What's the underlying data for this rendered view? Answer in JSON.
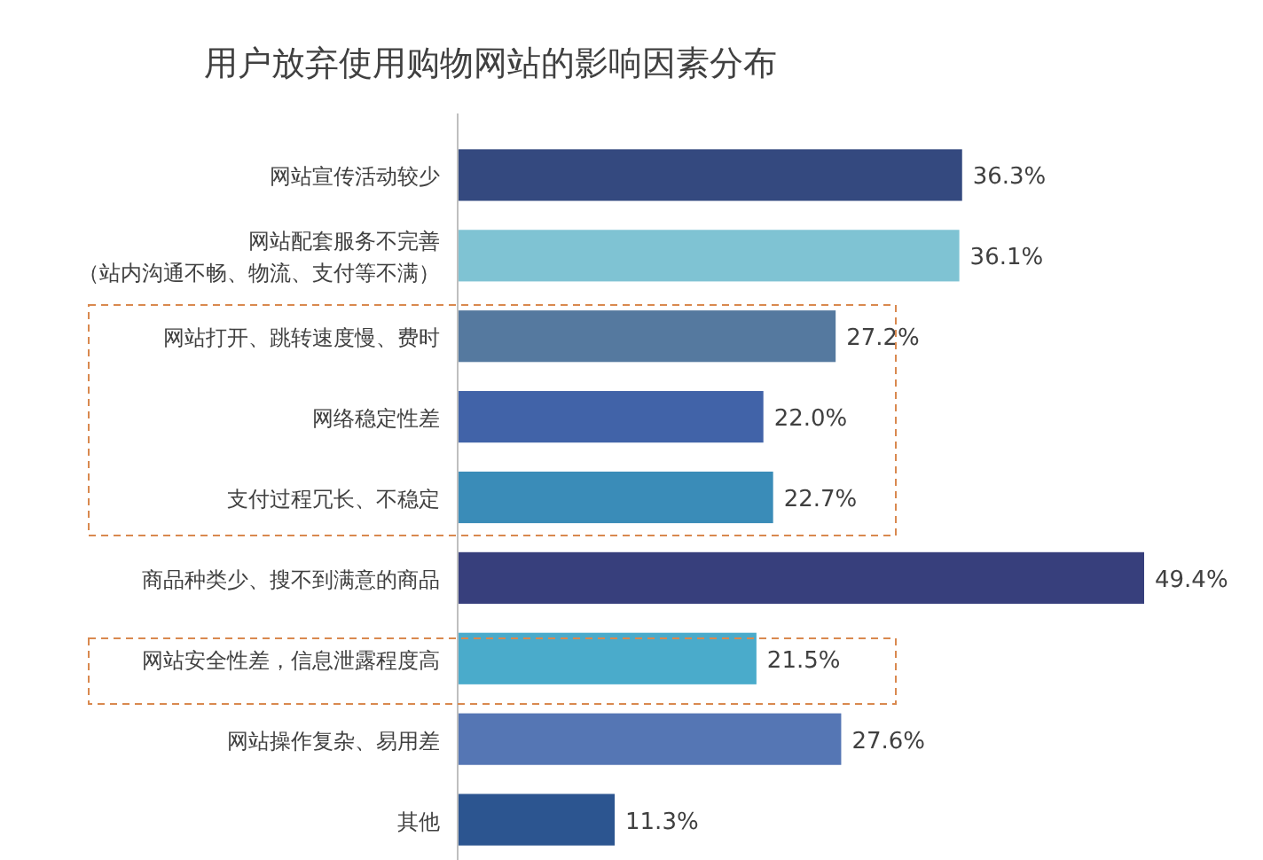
{
  "chart_data": {
    "type": "bar",
    "orientation": "horizontal",
    "title": "用户放弃使用购物网站的影响因素分布",
    "categories": [
      "网站宣传活动较少",
      "网站配套服务不完善（站内沟通不畅、物流、支付等不满）",
      "网站打开、跳转速度慢、费时",
      "网络稳定性差",
      "支付过程冗长、不稳定",
      "商品种类少、搜不到满意的商品",
      "网站安全性差，信息泄露程度高",
      "网站操作复杂、易用差",
      "其他"
    ],
    "values": [
      36.3,
      36.1,
      27.2,
      22.0,
      22.7,
      49.4,
      21.5,
      27.6,
      11.3
    ],
    "colors": [
      "#34497f",
      "#7fc3d3",
      "#55799f",
      "#4163a8",
      "#3a8cb8",
      "#373f7c",
      "#4aabcb",
      "#5576b4",
      "#2c5590"
    ],
    "value_labels": [
      "36.3%",
      "36.1%",
      "27.2%",
      "22.0%",
      "22.7%",
      "49.4%",
      "21.5%",
      "27.6%",
      "11.3%"
    ]
  }
}
